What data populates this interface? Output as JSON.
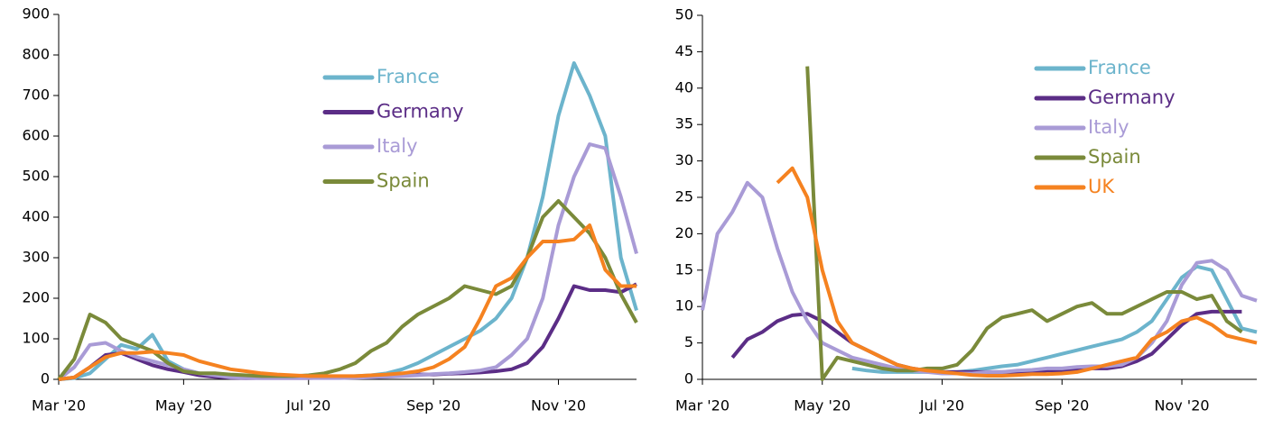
{
  "chart_data": [
    {
      "type": "line",
      "ylim": [
        0,
        900
      ],
      "yticks": [
        0,
        100,
        200,
        300,
        400,
        500,
        600,
        700,
        800,
        900
      ],
      "categories": [
        "Mar '20",
        null,
        null,
        null,
        null,
        null,
        null,
        null,
        "May '20",
        null,
        null,
        null,
        null,
        null,
        null,
        null,
        "Jul '20",
        null,
        null,
        null,
        null,
        null,
        null,
        null,
        "Sep '20",
        null,
        null,
        null,
        null,
        null,
        null,
        null,
        "Nov '20",
        null,
        null,
        null,
        null,
        null
      ],
      "series": [
        {
          "name": "France",
          "color": "#6cb4cc",
          "values": [
            0,
            3,
            15,
            50,
            85,
            75,
            110,
            45,
            25,
            15,
            10,
            5,
            5,
            5,
            5,
            5,
            8,
            5,
            5,
            8,
            10,
            15,
            25,
            40,
            60,
            80,
            100,
            120,
            150,
            200,
            300,
            450,
            650,
            780,
            700,
            600,
            300,
            170
          ]
        },
        {
          "name": "Germany",
          "color": "#5b2d86",
          "values": [
            0,
            5,
            30,
            60,
            65,
            50,
            35,
            25,
            18,
            10,
            6,
            4,
            3,
            3,
            3,
            3,
            3,
            4,
            5,
            6,
            8,
            8,
            10,
            12,
            12,
            14,
            15,
            17,
            20,
            25,
            40,
            80,
            150,
            230,
            220,
            220,
            215,
            235
          ]
        },
        {
          "name": "Italy",
          "color": "#a99bd6",
          "values": [
            0,
            30,
            85,
            90,
            70,
            55,
            45,
            35,
            25,
            15,
            10,
            5,
            4,
            3,
            3,
            3,
            3,
            3,
            3,
            4,
            5,
            6,
            8,
            10,
            13,
            15,
            18,
            22,
            30,
            60,
            100,
            200,
            380,
            500,
            580,
            570,
            450,
            310
          ]
        },
        {
          "name": "Spain",
          "color": "#7a8a3a",
          "values": [
            0,
            50,
            160,
            140,
            100,
            85,
            70,
            40,
            20,
            15,
            15,
            12,
            10,
            8,
            8,
            8,
            10,
            15,
            25,
            40,
            70,
            90,
            130,
            160,
            180,
            200,
            230,
            220,
            210,
            230,
            300,
            400,
            440,
            400,
            360,
            300,
            210,
            140
          ]
        },
        {
          "color": "#f58220",
          "values": [
            0,
            5,
            30,
            55,
            65,
            65,
            68,
            65,
            60,
            45,
            35,
            25,
            20,
            15,
            12,
            10,
            8,
            8,
            8,
            8,
            10,
            12,
            15,
            20,
            30,
            50,
            80,
            150,
            230,
            250,
            300,
            340,
            340,
            345,
            380,
            270,
            230,
            230
          ]
        }
      ]
    },
    {
      "type": "line",
      "ylim": [
        0,
        50
      ],
      "yticks": [
        0,
        5,
        10,
        15,
        20,
        25,
        30,
        35,
        40,
        45,
        50
      ],
      "categories": [
        "Mar '20",
        null,
        null,
        null,
        null,
        null,
        null,
        null,
        "May '20",
        null,
        null,
        null,
        null,
        null,
        null,
        null,
        "Jul '20",
        null,
        null,
        null,
        null,
        null,
        null,
        null,
        "Sep '20",
        null,
        null,
        null,
        null,
        null,
        null,
        null,
        "Nov '20",
        null,
        null,
        null,
        null,
        null
      ],
      "series": [
        {
          "name": "France",
          "color": "#6cb4cc",
          "values": [
            null,
            null,
            null,
            null,
            null,
            null,
            null,
            null,
            null,
            null,
            1.5,
            1.2,
            1,
            1,
            1,
            1,
            1,
            1,
            1.2,
            1.5,
            1.8,
            2,
            2.5,
            3,
            3.5,
            4,
            4.5,
            5,
            5.5,
            6.5,
            8,
            11,
            14,
            15.5,
            15,
            11,
            7,
            6.5
          ]
        },
        {
          "name": "Germany",
          "color": "#5b2d86",
          "values": [
            null,
            null,
            3,
            5.5,
            6.5,
            8,
            8.8,
            9,
            8,
            6.5,
            5,
            4,
            3,
            2,
            1.5,
            1.2,
            1,
            1,
            1,
            1,
            1,
            1,
            1,
            1.2,
            1.2,
            1.3,
            1.5,
            1.5,
            1.8,
            2.5,
            3.5,
            5.5,
            7.5,
            9,
            9.3,
            9.3,
            9.3,
            null
          ]
        },
        {
          "name": "Italy",
          "color": "#a99bd6",
          "values": [
            9.5,
            20,
            23,
            27,
            25,
            18,
            12,
            8,
            5,
            4,
            3,
            2.5,
            2,
            1.5,
            1.2,
            1,
            0.8,
            0.8,
            0.8,
            1,
            1,
            1.2,
            1.3,
            1.5,
            1.5,
            1.7,
            1.8,
            1.8,
            2,
            3,
            5,
            8,
            13,
            16,
            16.3,
            15,
            11.5,
            10.8
          ]
        },
        {
          "name": "Spain",
          "color": "#7a8a3a",
          "values": [
            null,
            null,
            null,
            null,
            null,
            null,
            null,
            43,
            0,
            3,
            2.5,
            2,
            1.5,
            1.2,
            1.2,
            1.5,
            1.5,
            2,
            4,
            7,
            8.5,
            9,
            9.5,
            8,
            9,
            10,
            10.5,
            9,
            9,
            10,
            11,
            12,
            12,
            11,
            11.5,
            8,
            6.5,
            null
          ]
        },
        {
          "name": "UK",
          "color": "#f58220",
          "values": [
            null,
            null,
            null,
            null,
            null,
            27,
            29,
            25,
            15,
            8,
            5,
            4,
            3,
            2,
            1.5,
            1.2,
            1,
            0.8,
            0.6,
            0.5,
            0.5,
            0.6,
            0.7,
            0.7,
            0.8,
            1,
            1.5,
            2,
            2.5,
            3,
            5.5,
            6.5,
            8,
            8.5,
            7.5,
            6,
            5.5,
            5
          ]
        }
      ]
    }
  ]
}
